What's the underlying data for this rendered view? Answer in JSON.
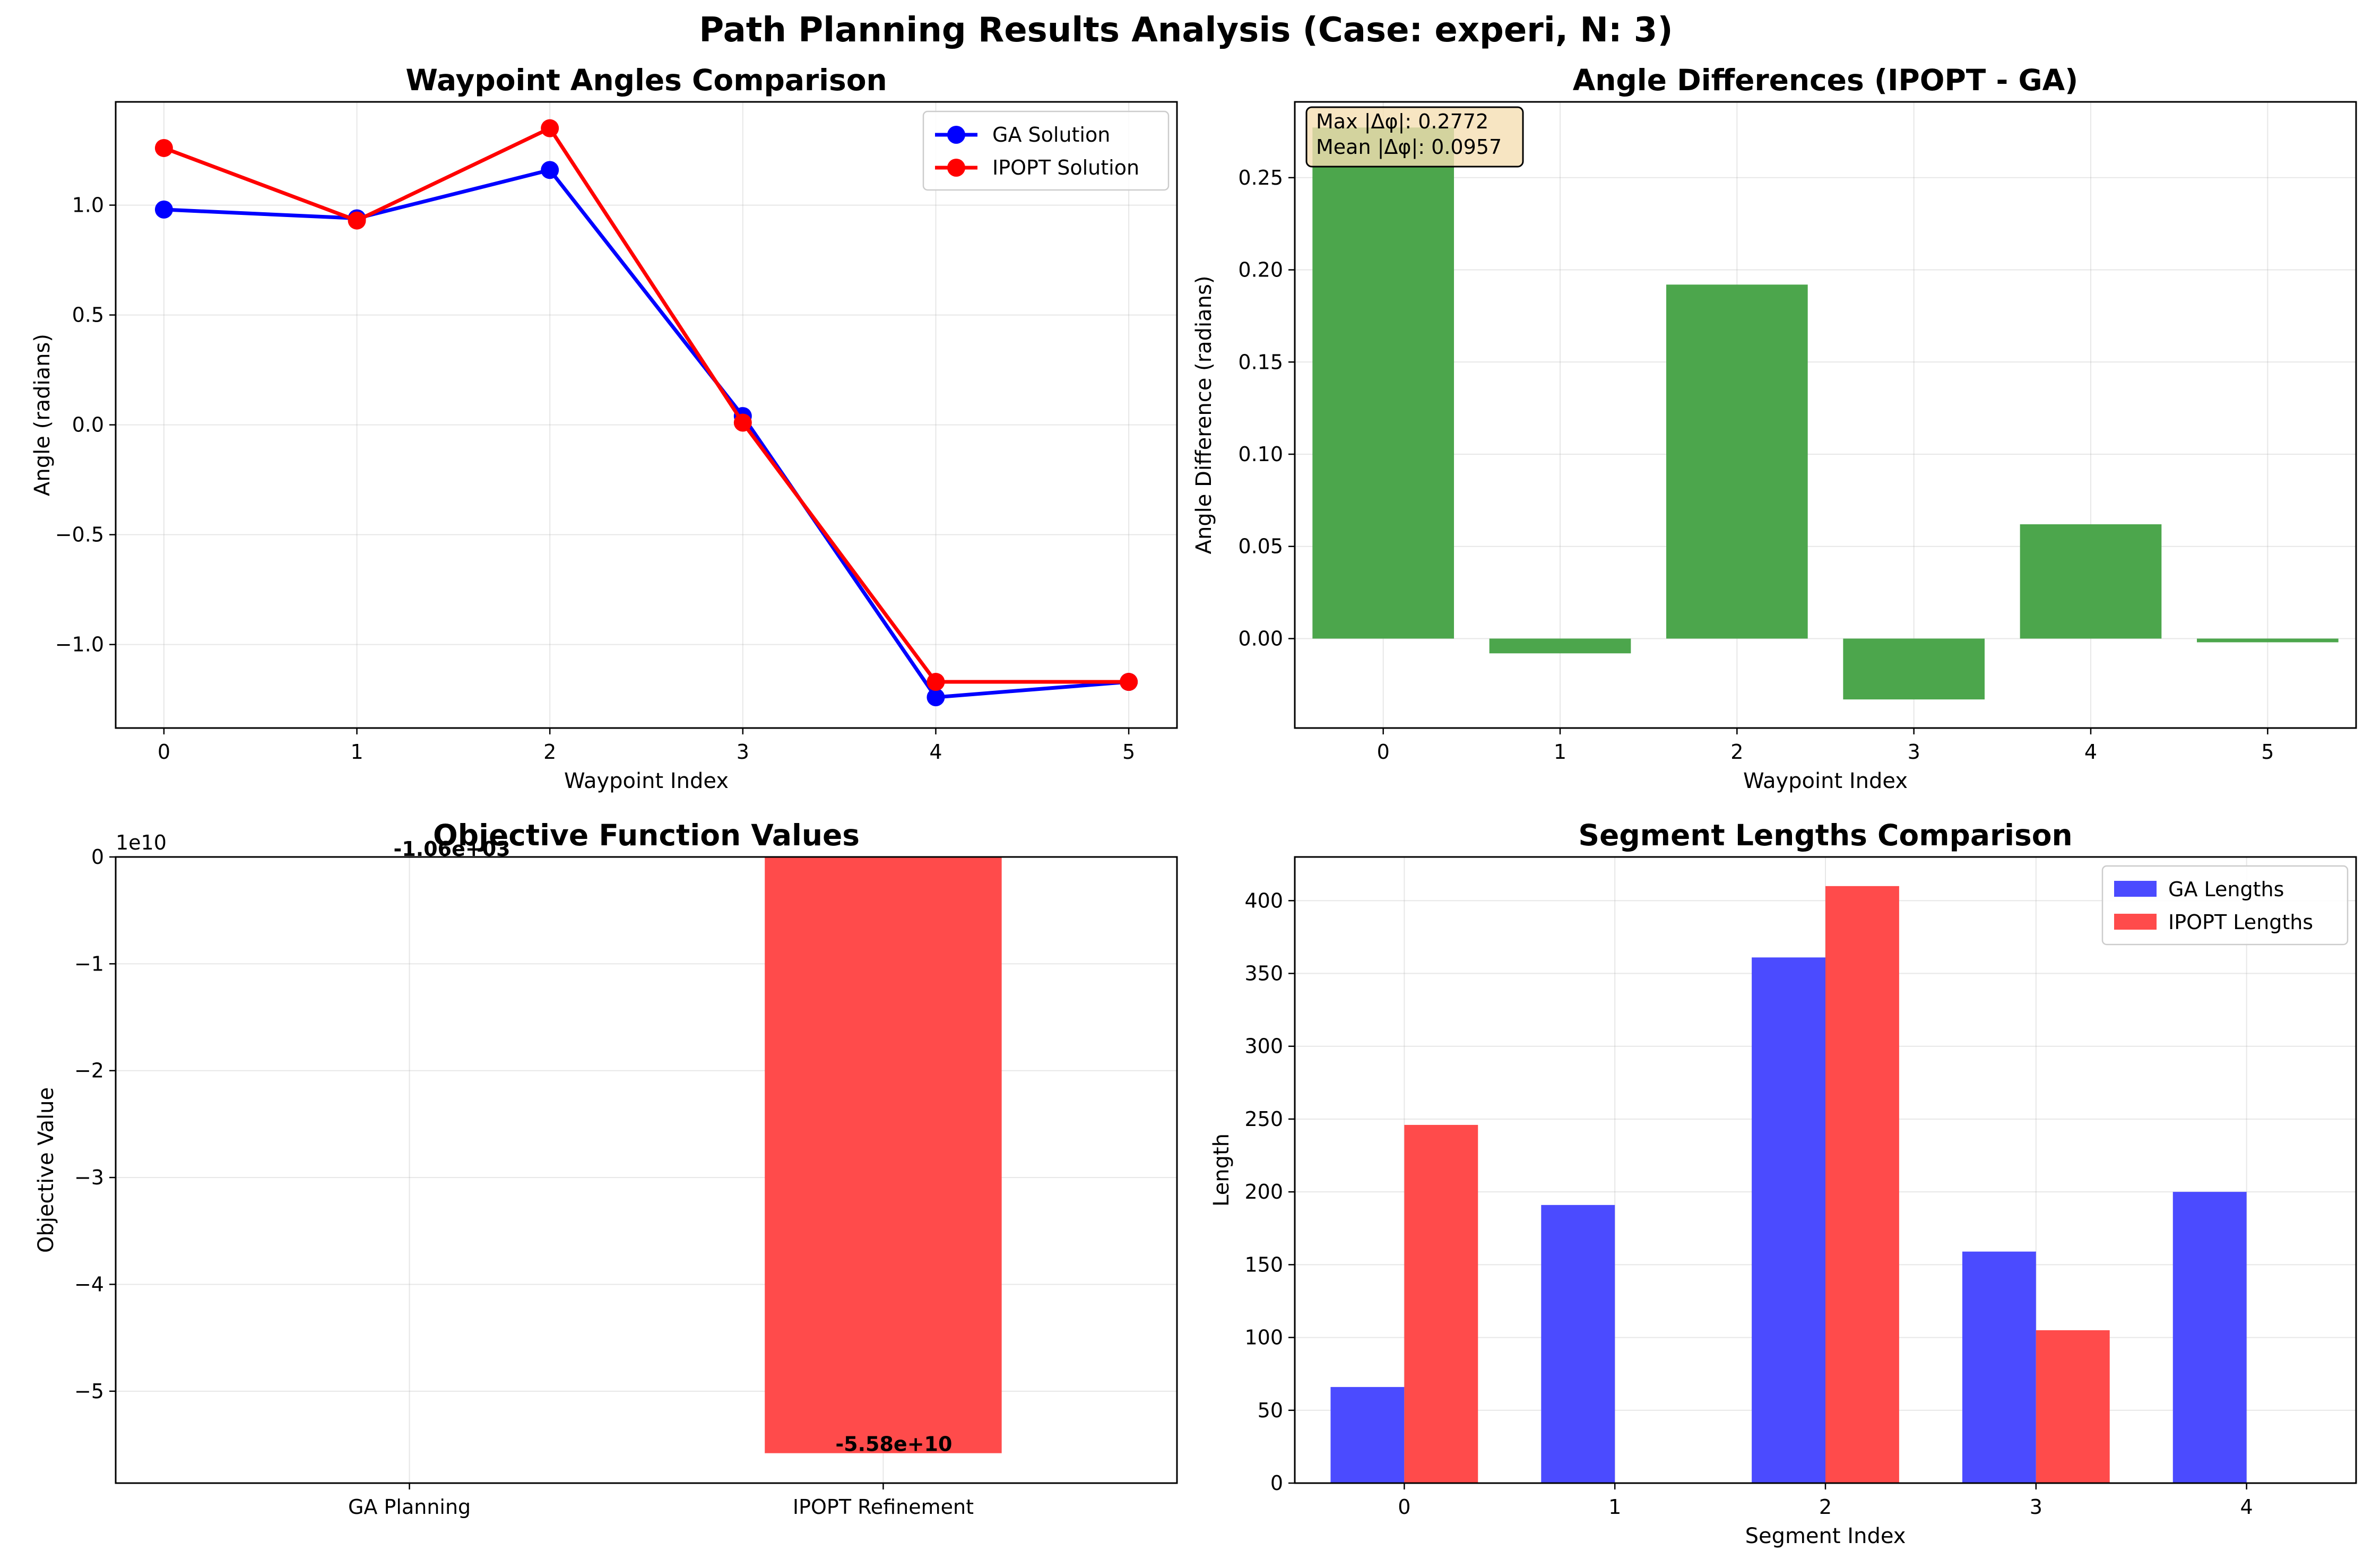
{
  "figure": {
    "suptitle": "Path Planning Results Analysis (Case: experi, N: 3)"
  },
  "colors": {
    "ga": "#0000ff",
    "ipopt": "#ff0000",
    "ga_bar": "#4b4bff",
    "ipopt_bar": "#ff4b4b",
    "diff_bar": "#4ca64c",
    "stats_box_fill": "#f5deb3"
  },
  "chart_data": [
    {
      "id": "angles",
      "type": "line",
      "title": "Waypoint Angles Comparison",
      "xlabel": "Waypoint Index",
      "ylabel": "Angle (radians)",
      "x": [
        0,
        1,
        2,
        3,
        4,
        5
      ],
      "xlim": [
        -0.25,
        5.25
      ],
      "ylim": [
        -1.38,
        1.47
      ],
      "yticks": [
        -1.0,
        -0.5,
        0.0,
        0.5,
        1.0
      ],
      "ytick_labels": [
        "−1.0",
        "−0.5",
        "0.0",
        "0.5",
        "1.0"
      ],
      "grid": true,
      "legend": "upper-right",
      "series": [
        {
          "name": "GA Solution",
          "values": [
            0.98,
            0.94,
            1.16,
            0.04,
            -1.24,
            -1.17
          ]
        },
        {
          "name": "IPOPT Solution",
          "values": [
            1.26,
            0.93,
            1.35,
            0.01,
            -1.17,
            -1.17
          ]
        }
      ]
    },
    {
      "id": "diffs",
      "type": "bar",
      "title": "Angle Differences (IPOPT - GA)",
      "xlabel": "Waypoint Index",
      "ylabel": "Angle Difference (radians)",
      "categories": [
        0,
        1,
        2,
        3,
        4,
        5
      ],
      "values": [
        0.2772,
        -0.008,
        0.192,
        -0.033,
        0.062,
        -0.002
      ],
      "xlim": [
        -0.5,
        5.5
      ],
      "ylim": [
        -0.0485,
        0.2911
      ],
      "yticks": [
        0.0,
        0.05,
        0.1,
        0.15,
        0.2,
        0.25
      ],
      "ytick_labels": [
        "0.00",
        "0.05",
        "0.10",
        "0.15",
        "0.20",
        "0.25"
      ],
      "grid": true,
      "stats_text": [
        "Max |Δφ|: 0.2772",
        "Mean |Δφ|: 0.0957"
      ]
    },
    {
      "id": "objective",
      "type": "bar",
      "title": "Objective Function Values",
      "ylabel": "Objective Value",
      "categories": [
        "GA Planning",
        "IPOPT Refinement"
      ],
      "values": [
        -1060,
        -55800000000
      ],
      "value_labels": [
        "-1.06e+03",
        "-5.58e+10"
      ],
      "xlim": [
        -0.62,
        1.62
      ],
      "ylim": [
        -5.86,
        0
      ],
      "yticks": [
        0,
        -1,
        -2,
        -3,
        -4,
        -5
      ],
      "ytick_labels": [
        "0",
        "−1",
        "−2",
        "−3",
        "−4",
        "−5"
      ],
      "offset_label": "1e10",
      "grid": true
    },
    {
      "id": "segments",
      "type": "bar",
      "title": "Segment Lengths Comparison",
      "xlabel": "Segment Index",
      "ylabel": "Length",
      "categories": [
        0,
        1,
        2,
        3,
        4
      ],
      "xlim": [
        -0.52,
        4.52
      ],
      "ylim": [
        0,
        430
      ],
      "yticks": [
        0,
        50,
        100,
        150,
        200,
        250,
        300,
        350,
        400
      ],
      "ytick_labels": [
        "0",
        "50",
        "100",
        "150",
        "200",
        "250",
        "300",
        "350",
        "400"
      ],
      "grid": true,
      "legend": "upper-right",
      "series": [
        {
          "name": "GA Lengths",
          "values": [
            66,
            191,
            361,
            159,
            200
          ]
        },
        {
          "name": "IPOPT Lengths",
          "values": [
            246,
            0,
            410,
            105,
            0
          ]
        }
      ]
    }
  ]
}
